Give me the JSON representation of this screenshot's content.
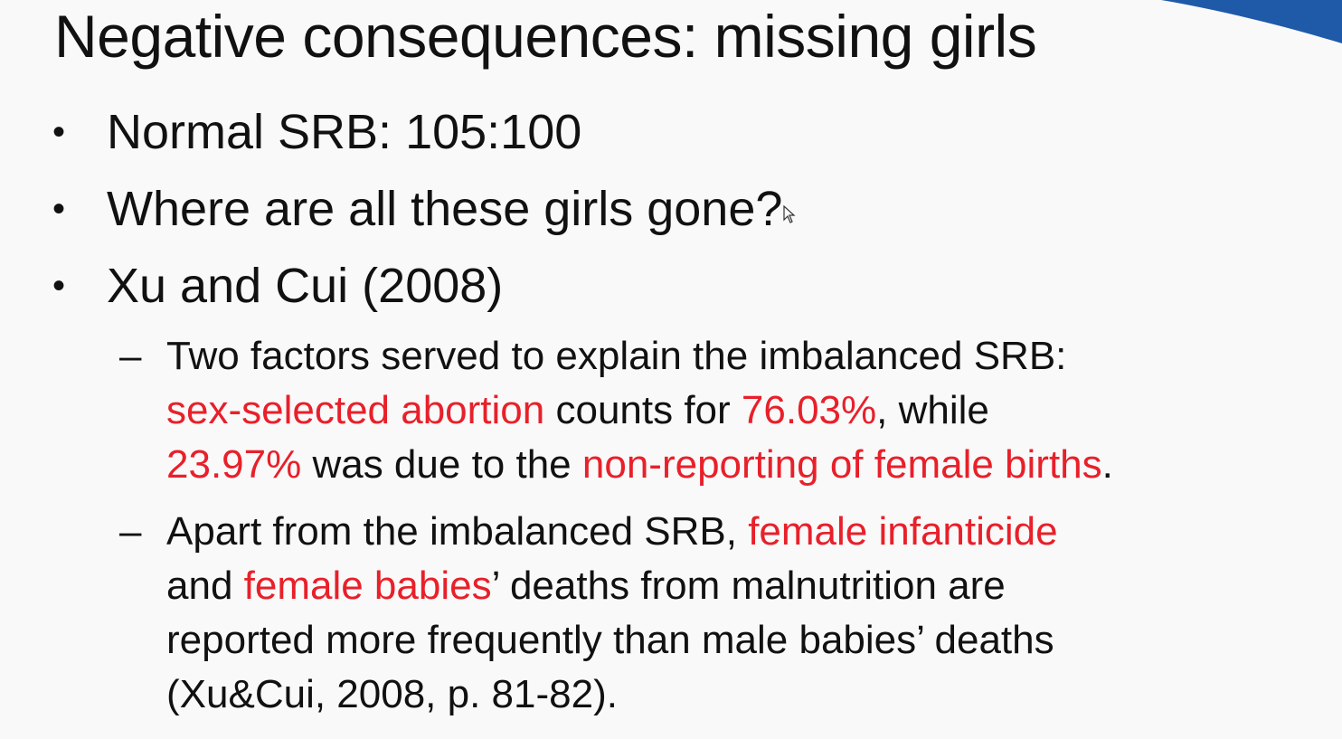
{
  "slide": {
    "title": "Negative consequences: missing girls",
    "accent_color": "#1f5aa8",
    "highlight_color": "#e8202a",
    "bullets": [
      {
        "marker": "•",
        "text": "Normal SRB: 105:100"
      },
      {
        "marker": "•",
        "text": "Where are all these girls gone?"
      },
      {
        "marker": "•",
        "text": "Xu and Cui (2008)"
      }
    ],
    "sub_bullets": [
      {
        "marker": "–",
        "line1": "Two factors served to explain the imbalanced SRB:",
        "line2": {
          "a": "sex-selected abortion",
          "b": " counts for ",
          "c": "76.03%",
          "d": ", while"
        },
        "line3": {
          "a": "23.97%",
          "b": " was due to the ",
          "c": "non-reporting of female births",
          "d": "."
        }
      },
      {
        "marker": "–",
        "line1": {
          "a": "Apart from the imbalanced SRB, ",
          "b": "female infanticide"
        },
        "line2": {
          "a": "and ",
          "b": "female babies",
          "c": "’ deaths from malnutrition are"
        },
        "line3": "reported more frequently than male babies’ deaths",
        "line4": "(Xu&Cui, 2008, p. 81-82)."
      }
    ],
    "icons": [
      "mouse-pointer-icon"
    ]
  }
}
